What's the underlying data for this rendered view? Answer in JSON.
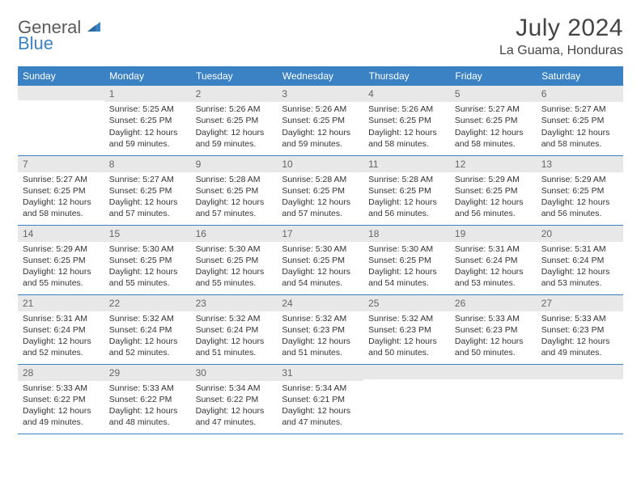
{
  "logo": {
    "word1": "General",
    "word2": "Blue"
  },
  "title": "July 2024",
  "location": "La Guama, Honduras",
  "colors": {
    "header_bg": "#3b82c4",
    "header_text": "#ffffff",
    "daynum_bg": "#e8e8e8",
    "daynum_text": "#666666",
    "border": "#3b82c4",
    "body_text": "#333333",
    "logo_gray": "#5a5a5a",
    "logo_blue": "#3b82c4"
  },
  "weekdays": [
    "Sunday",
    "Monday",
    "Tuesday",
    "Wednesday",
    "Thursday",
    "Friday",
    "Saturday"
  ],
  "weeks": [
    [
      {
        "num": "",
        "lines": []
      },
      {
        "num": "1",
        "lines": [
          "Sunrise: 5:25 AM",
          "Sunset: 6:25 PM",
          "Daylight: 12 hours and 59 minutes."
        ]
      },
      {
        "num": "2",
        "lines": [
          "Sunrise: 5:26 AM",
          "Sunset: 6:25 PM",
          "Daylight: 12 hours and 59 minutes."
        ]
      },
      {
        "num": "3",
        "lines": [
          "Sunrise: 5:26 AM",
          "Sunset: 6:25 PM",
          "Daylight: 12 hours and 59 minutes."
        ]
      },
      {
        "num": "4",
        "lines": [
          "Sunrise: 5:26 AM",
          "Sunset: 6:25 PM",
          "Daylight: 12 hours and 58 minutes."
        ]
      },
      {
        "num": "5",
        "lines": [
          "Sunrise: 5:27 AM",
          "Sunset: 6:25 PM",
          "Daylight: 12 hours and 58 minutes."
        ]
      },
      {
        "num": "6",
        "lines": [
          "Sunrise: 5:27 AM",
          "Sunset: 6:25 PM",
          "Daylight: 12 hours and 58 minutes."
        ]
      }
    ],
    [
      {
        "num": "7",
        "lines": [
          "Sunrise: 5:27 AM",
          "Sunset: 6:25 PM",
          "Daylight: 12 hours and 58 minutes."
        ]
      },
      {
        "num": "8",
        "lines": [
          "Sunrise: 5:27 AM",
          "Sunset: 6:25 PM",
          "Daylight: 12 hours and 57 minutes."
        ]
      },
      {
        "num": "9",
        "lines": [
          "Sunrise: 5:28 AM",
          "Sunset: 6:25 PM",
          "Daylight: 12 hours and 57 minutes."
        ]
      },
      {
        "num": "10",
        "lines": [
          "Sunrise: 5:28 AM",
          "Sunset: 6:25 PM",
          "Daylight: 12 hours and 57 minutes."
        ]
      },
      {
        "num": "11",
        "lines": [
          "Sunrise: 5:28 AM",
          "Sunset: 6:25 PM",
          "Daylight: 12 hours and 56 minutes."
        ]
      },
      {
        "num": "12",
        "lines": [
          "Sunrise: 5:29 AM",
          "Sunset: 6:25 PM",
          "Daylight: 12 hours and 56 minutes."
        ]
      },
      {
        "num": "13",
        "lines": [
          "Sunrise: 5:29 AM",
          "Sunset: 6:25 PM",
          "Daylight: 12 hours and 56 minutes."
        ]
      }
    ],
    [
      {
        "num": "14",
        "lines": [
          "Sunrise: 5:29 AM",
          "Sunset: 6:25 PM",
          "Daylight: 12 hours and 55 minutes."
        ]
      },
      {
        "num": "15",
        "lines": [
          "Sunrise: 5:30 AM",
          "Sunset: 6:25 PM",
          "Daylight: 12 hours and 55 minutes."
        ]
      },
      {
        "num": "16",
        "lines": [
          "Sunrise: 5:30 AM",
          "Sunset: 6:25 PM",
          "Daylight: 12 hours and 55 minutes."
        ]
      },
      {
        "num": "17",
        "lines": [
          "Sunrise: 5:30 AM",
          "Sunset: 6:25 PM",
          "Daylight: 12 hours and 54 minutes."
        ]
      },
      {
        "num": "18",
        "lines": [
          "Sunrise: 5:30 AM",
          "Sunset: 6:25 PM",
          "Daylight: 12 hours and 54 minutes."
        ]
      },
      {
        "num": "19",
        "lines": [
          "Sunrise: 5:31 AM",
          "Sunset: 6:24 PM",
          "Daylight: 12 hours and 53 minutes."
        ]
      },
      {
        "num": "20",
        "lines": [
          "Sunrise: 5:31 AM",
          "Sunset: 6:24 PM",
          "Daylight: 12 hours and 53 minutes."
        ]
      }
    ],
    [
      {
        "num": "21",
        "lines": [
          "Sunrise: 5:31 AM",
          "Sunset: 6:24 PM",
          "Daylight: 12 hours and 52 minutes."
        ]
      },
      {
        "num": "22",
        "lines": [
          "Sunrise: 5:32 AM",
          "Sunset: 6:24 PM",
          "Daylight: 12 hours and 52 minutes."
        ]
      },
      {
        "num": "23",
        "lines": [
          "Sunrise: 5:32 AM",
          "Sunset: 6:24 PM",
          "Daylight: 12 hours and 51 minutes."
        ]
      },
      {
        "num": "24",
        "lines": [
          "Sunrise: 5:32 AM",
          "Sunset: 6:23 PM",
          "Daylight: 12 hours and 51 minutes."
        ]
      },
      {
        "num": "25",
        "lines": [
          "Sunrise: 5:32 AM",
          "Sunset: 6:23 PM",
          "Daylight: 12 hours and 50 minutes."
        ]
      },
      {
        "num": "26",
        "lines": [
          "Sunrise: 5:33 AM",
          "Sunset: 6:23 PM",
          "Daylight: 12 hours and 50 minutes."
        ]
      },
      {
        "num": "27",
        "lines": [
          "Sunrise: 5:33 AM",
          "Sunset: 6:23 PM",
          "Daylight: 12 hours and 49 minutes."
        ]
      }
    ],
    [
      {
        "num": "28",
        "lines": [
          "Sunrise: 5:33 AM",
          "Sunset: 6:22 PM",
          "Daylight: 12 hours and 49 minutes."
        ]
      },
      {
        "num": "29",
        "lines": [
          "Sunrise: 5:33 AM",
          "Sunset: 6:22 PM",
          "Daylight: 12 hours and 48 minutes."
        ]
      },
      {
        "num": "30",
        "lines": [
          "Sunrise: 5:34 AM",
          "Sunset: 6:22 PM",
          "Daylight: 12 hours and 47 minutes."
        ]
      },
      {
        "num": "31",
        "lines": [
          "Sunrise: 5:34 AM",
          "Sunset: 6:21 PM",
          "Daylight: 12 hours and 47 minutes."
        ]
      },
      {
        "num": "",
        "lines": []
      },
      {
        "num": "",
        "lines": []
      },
      {
        "num": "",
        "lines": []
      }
    ]
  ]
}
